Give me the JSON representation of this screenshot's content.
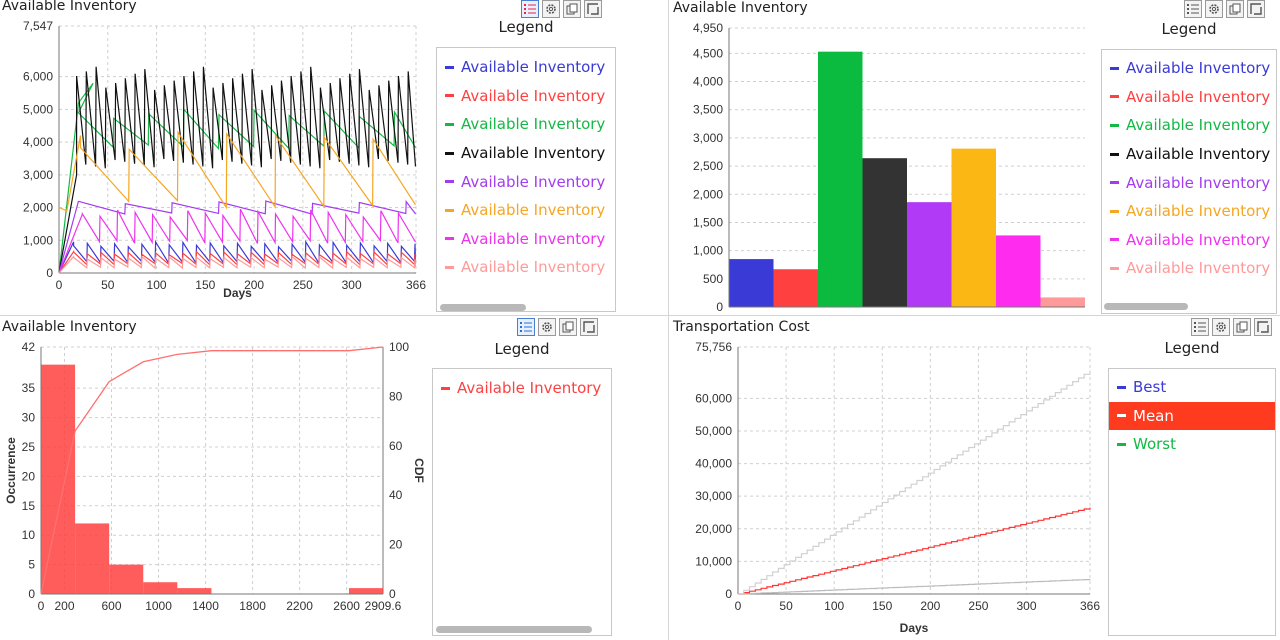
{
  "panels": {
    "tl": {
      "title": "Available Inventory",
      "legend_title": "Legend",
      "legend": [
        {
          "label": "Available Inventory",
          "color": "#3a3ad6"
        },
        {
          "label": "Available Inventory",
          "color": "#ff4040"
        },
        {
          "label": "Available Inventory",
          "color": "#15b845"
        },
        {
          "label": "Available Inventory",
          "color": "#111111"
        },
        {
          "label": "Available Inventory",
          "color": "#a33cf0"
        },
        {
          "label": "Available Inventory",
          "color": "#f5a623"
        },
        {
          "label": "Available Inventory",
          "color": "#ee33ee"
        },
        {
          "label": "Available Inventory",
          "color": "#ff9a9a"
        }
      ]
    },
    "tr": {
      "title": "Available Inventory",
      "legend_title": "Legend",
      "legend": [
        {
          "label": "Available Inventory",
          "color": "#3a3ad6"
        },
        {
          "label": "Available Inventory",
          "color": "#ff4040"
        },
        {
          "label": "Available Inventory",
          "color": "#15b845"
        },
        {
          "label": "Available Inventory",
          "color": "#111111"
        },
        {
          "label": "Available Inventory",
          "color": "#a33cf0"
        },
        {
          "label": "Available Inventory",
          "color": "#f5a623"
        },
        {
          "label": "Available Inventory",
          "color": "#ee33ee"
        },
        {
          "label": "Available Inventory",
          "color": "#ff9a9a"
        }
      ]
    },
    "bl": {
      "title": "Available Inventory",
      "legend_title": "Legend",
      "legend": [
        {
          "label": "Available Inventory",
          "color": "#ff4040"
        }
      ]
    },
    "br": {
      "title": "Transportation Cost",
      "legend_title": "Legend",
      "legend": [
        {
          "label": "Best",
          "color": "#3a3ad6"
        },
        {
          "label": "Mean",
          "color": "#ff3b1f",
          "selected": true
        },
        {
          "label": "Worst",
          "color": "#15b845"
        }
      ]
    }
  },
  "chart_data": [
    {
      "id": "tl",
      "type": "line",
      "xlabel": "Days",
      "xlim": [
        0,
        366
      ],
      "ylim": [
        0,
        7547
      ],
      "xticks": [
        "0",
        "50",
        "100",
        "150",
        "200",
        "250",
        "300",
        "366"
      ],
      "xtick_values": [
        0,
        50,
        100,
        150,
        200,
        250,
        300,
        366
      ],
      "yticks": [
        "0",
        "1,000",
        "2,000",
        "3,000",
        "4,000",
        "5,000",
        "6,000",
        "7,547"
      ],
      "ytick_values": [
        0,
        1000,
        2000,
        3000,
        4000,
        5000,
        6000,
        7547
      ],
      "series": [
        {
          "color": "#3a3ad6",
          "shape": "sawtooth",
          "period": 14,
          "high": 950,
          "low": 300,
          "start": 15
        },
        {
          "color": "#ff4040",
          "shape": "sawtooth",
          "period": 14,
          "high": 650,
          "low": 250,
          "start": 15
        },
        {
          "color": "#15b845",
          "shape": "sawtooth",
          "period": 36,
          "high": 5000,
          "low": 3800,
          "start": 20,
          "ramp": [
            [
              0,
              0
            ],
            [
              20,
              5200
            ],
            [
              35,
              5800
            ]
          ]
        },
        {
          "color": "#111111",
          "shape": "sawtooth",
          "period": 10,
          "high": 6300,
          "low": 3200,
          "start": 18,
          "ramp": [
            [
              0,
              0
            ],
            [
              18,
              3000
            ]
          ]
        },
        {
          "color": "#a33cf0",
          "shape": "sawtooth",
          "period": 48,
          "high": 2200,
          "low": 1800,
          "start": 20,
          "ramp": [
            [
              0,
              0
            ],
            [
              20,
              2200
            ]
          ]
        },
        {
          "color": "#f5a623",
          "shape": "sawtooth",
          "period": 50,
          "high": 4300,
          "low": 2000,
          "start": 22,
          "ramp": [
            [
              0,
              2000
            ],
            [
              8,
              1900
            ],
            [
              22,
              4200
            ]
          ]
        },
        {
          "color": "#ee33ee",
          "shape": "sawtooth",
          "period": 18,
          "high": 1950,
          "low": 900,
          "start": 24,
          "ramp": [
            [
              0,
              0
            ],
            [
              24,
              1800
            ]
          ]
        },
        {
          "color": "#ff9a9a",
          "shape": "sawtooth",
          "period": 14,
          "high": 500,
          "low": 150,
          "start": 15
        }
      ]
    },
    {
      "id": "tr",
      "type": "bar",
      "ylim": [
        0,
        4950
      ],
      "yticks": [
        "0",
        "500",
        "1,000",
        "1,500",
        "2,000",
        "2,500",
        "3,000",
        "3,500",
        "4,000",
        "4,500",
        "4,950"
      ],
      "ytick_values": [
        0,
        500,
        1000,
        1500,
        2000,
        2500,
        3000,
        3500,
        4000,
        4500,
        4950
      ],
      "values": [
        850,
        670,
        4530,
        2640,
        1860,
        2810,
        1270,
        170
      ],
      "colors": [
        "#3a3ad6",
        "#ff4040",
        "#0bbb3f",
        "#333333",
        "#b03af5",
        "#fbb714",
        "#ff2cf0",
        "#ff9a9a"
      ]
    },
    {
      "id": "bl",
      "type": "bar",
      "ylabel": "Occurrence",
      "y2label": "CDF",
      "xlim": [
        0,
        2909.6
      ],
      "ylim": [
        0,
        42
      ],
      "y2lim": [
        0,
        100
      ],
      "xticks": [
        "0",
        "200",
        "600",
        "1000",
        "1400",
        "1800",
        "2200",
        "2600",
        "2909.6"
      ],
      "xtick_values": [
        0,
        200,
        600,
        1000,
        1400,
        1800,
        2200,
        2600,
        2909.6
      ],
      "yticks": [
        "0",
        "5",
        "10",
        "15",
        "20",
        "25",
        "30",
        "35",
        "42"
      ],
      "ytick_values": [
        0,
        5,
        10,
        15,
        20,
        25,
        30,
        35,
        42
      ],
      "y2ticks": [
        "0",
        "20",
        "40",
        "60",
        "80",
        "100"
      ],
      "y2tick_values": [
        0,
        20,
        40,
        60,
        80,
        100
      ],
      "bins": [
        {
          "x0": 0,
          "x1": 290,
          "count": 39
        },
        {
          "x0": 290,
          "x1": 580,
          "count": 12
        },
        {
          "x0": 580,
          "x1": 870,
          "count": 5
        },
        {
          "x0": 870,
          "x1": 1160,
          "count": 2
        },
        {
          "x0": 1160,
          "x1": 1450,
          "count": 1
        },
        {
          "x0": 2620,
          "x1": 2909.6,
          "count": 1
        }
      ],
      "cdf": [
        [
          0,
          0
        ],
        [
          290,
          66
        ],
        [
          580,
          86
        ],
        [
          870,
          94
        ],
        [
          1160,
          97
        ],
        [
          1450,
          98.5
        ],
        [
          2620,
          98.5
        ],
        [
          2909.6,
          100
        ]
      ],
      "color": "#ff4040"
    },
    {
      "id": "br",
      "type": "line",
      "xlabel": "Days",
      "xlim": [
        0,
        366
      ],
      "ylim": [
        0,
        75756
      ],
      "xticks": [
        "0",
        "50",
        "100",
        "150",
        "200",
        "250",
        "300",
        "366"
      ],
      "xtick_values": [
        0,
        50,
        100,
        150,
        200,
        250,
        300,
        366
      ],
      "yticks": [
        "0",
        "10,000",
        "20,000",
        "30,000",
        "40,000",
        "50,000",
        "60,000",
        "75,756"
      ],
      "ytick_values": [
        0,
        10000,
        20000,
        30000,
        40000,
        50000,
        60000,
        75756
      ],
      "series": [
        {
          "name": "Best",
          "color": "#bbbbbb",
          "end": 4500
        },
        {
          "name": "Mean",
          "color": "#ff3333",
          "end": 26500
        },
        {
          "name": "Worst",
          "color": "#d0d0d0",
          "end": 68500
        }
      ]
    }
  ]
}
